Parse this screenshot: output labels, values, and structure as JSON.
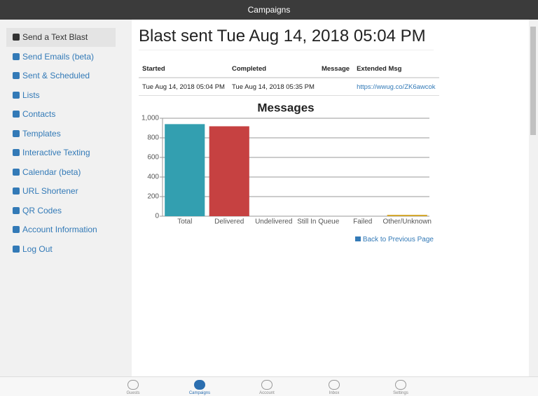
{
  "header": {
    "title": "Campaigns"
  },
  "sidebar": {
    "items": [
      "Send a Text Blast",
      "Send Emails (beta)",
      "Sent & Scheduled",
      "Lists",
      "Contacts",
      "Templates",
      "Interactive Texting",
      "Calendar (beta)",
      "URL Shortener",
      "QR Codes",
      "Account Information",
      "Log Out"
    ]
  },
  "main": {
    "title": "Blast sent Tue Aug 14, 2018 05:04 PM",
    "table": {
      "columns": [
        "Started",
        "Completed",
        "Message",
        "Extended Msg"
      ],
      "rows": [
        [
          "Tue Aug 14, 2018 05:04 PM",
          "Tue Aug 14, 2018 05:35 PM",
          "",
          "https://wwug.co/ZK6awcok"
        ]
      ]
    },
    "back_link": "Back to Previous Page"
  },
  "chart_data": {
    "type": "bar",
    "title": "Messages",
    "categories": [
      "Total",
      "Delivered",
      "Undelivered",
      "Still In Queue",
      "Failed",
      "Other/Unknown"
    ],
    "values": [
      940,
      918,
      0,
      0,
      0,
      14
    ],
    "colors": [
      "#339fb0",
      "#c64141",
      "#7a7a7a",
      "#7a7a7a",
      "#7a7a7a",
      "#d4a72c"
    ],
    "ylim": [
      0,
      1000
    ],
    "yticks": [
      0,
      200,
      400,
      600,
      800,
      {
        "value": 1000,
        "label": "1,000"
      }
    ],
    "grid": true
  },
  "tabbar": {
    "tabs": [
      "Guests",
      "Campaigns",
      "Account",
      "Inbox",
      "Settings"
    ]
  }
}
